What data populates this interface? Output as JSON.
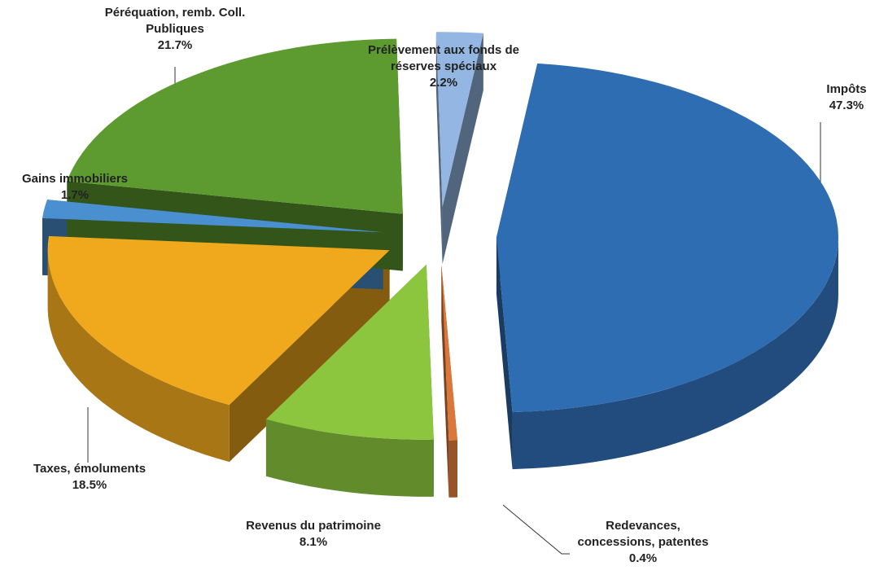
{
  "chart_data": {
    "type": "pie3d",
    "categories": [
      "Impôts",
      "Redevances, concessions, patentes",
      "Revenus du patrimoine",
      "Taxes, émoluments",
      "Gains immobiliers",
      "Péréquation, remb. Coll. Publiques",
      "Prélèvement aux fonds de réserves spéciaux"
    ],
    "values": [
      47.3,
      0.4,
      8.1,
      18.5,
      1.7,
      21.7,
      2.2
    ],
    "value_labels": [
      "47.3%",
      "0.4%",
      "8.1%",
      "18.5%",
      "1.7%",
      "21.7%",
      "2.2%"
    ],
    "colors": [
      "#2f6db3",
      "#d9783a",
      "#8cc63f",
      "#f0a81c",
      "#4a8fd0",
      "#5d9a30",
      "#93b7e2"
    ]
  }
}
